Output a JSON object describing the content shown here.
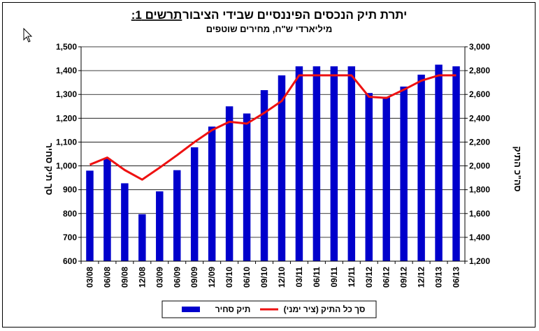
{
  "chart_data": {
    "type": "bar+line",
    "title": "תרשים 1: יתרת תיק הנכסים הפיננסיים שבידי הציבור",
    "title_label": "תרשים 1:",
    "title_rest": "יתרת תיק הנכסים הפיננסיים שבידי הציבור",
    "subtitle": "מיליארדי ש\"ח, מחירים שוטפים",
    "categories": [
      "03/08",
      "06/08",
      "09/08",
      "12/08",
      "03/09",
      "06/09",
      "09/09",
      "12/09",
      "03/10",
      "06/10",
      "09/10",
      "12/10",
      "03/11",
      "06/11",
      "09/11",
      "12/11",
      "03/12",
      "06/12",
      "09/12",
      "12/12",
      "03/13",
      "06/13"
    ],
    "series": [
      {
        "name": "תיק סחיר",
        "type": "bar",
        "axis": "left",
        "color": "#0000cc",
        "values": [
          980,
          1030,
          927,
          797,
          893,
          982,
          1078,
          1165,
          1250,
          1220,
          1318,
          1380,
          1418,
          1418,
          1418,
          1418,
          1306,
          1290,
          1333,
          1383,
          1425,
          1418
        ]
      },
      {
        "name": "סך כל התיק (ציר ימני)",
        "type": "line",
        "axis": "right",
        "color": "#ee1111",
        "values": [
          2010,
          2070,
          1965,
          1885,
          1985,
          2090,
          2200,
          2300,
          2370,
          2355,
          2445,
          2545,
          2760,
          2760,
          2760,
          2760,
          2580,
          2570,
          2640,
          2715,
          2760,
          2760
        ]
      }
    ],
    "y_left": {
      "label": "סך תיק סחיר",
      "ylim": [
        600,
        1500
      ],
      "ticks": [
        "600",
        "700",
        "800",
        "900",
        "1,000",
        "1,100",
        "1,200",
        "1,300",
        "1,400",
        "1,500"
      ]
    },
    "y_right": {
      "label": "סה\"כ התיק",
      "ylim": [
        1200,
        3000
      ],
      "ticks": [
        "1,200",
        "1,400",
        "1,600",
        "1,800",
        "2,000",
        "2,200",
        "2,400",
        "2,600",
        "2,800",
        "3,000"
      ]
    },
    "grid": "horizontal",
    "legend": {
      "position": "bottom",
      "entries": [
        "תיק סחיר",
        "סך כל התיק (ציר ימני)"
      ]
    }
  }
}
